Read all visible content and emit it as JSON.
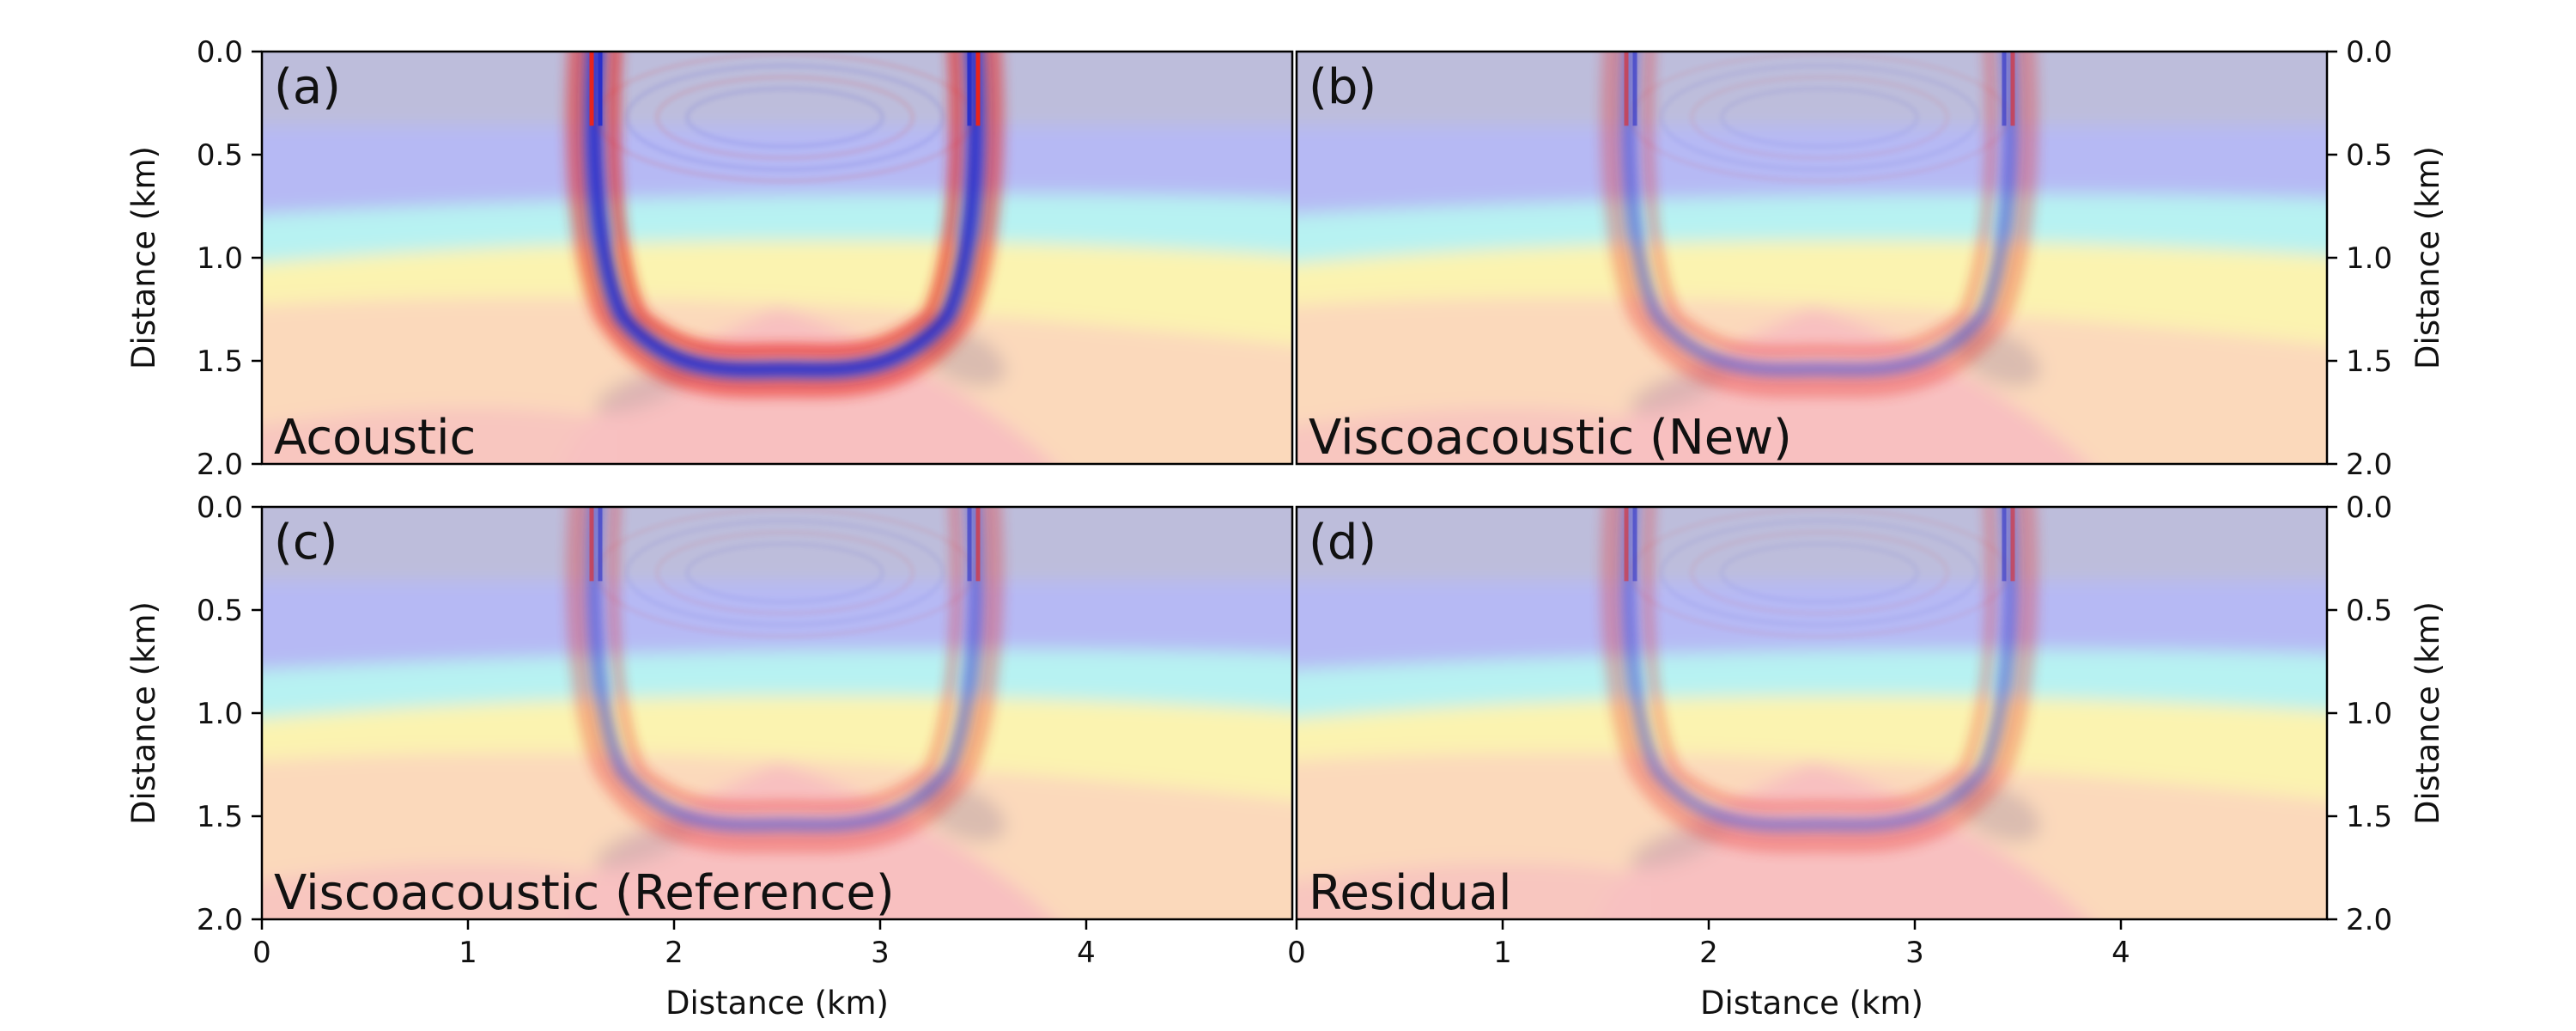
{
  "figure": {
    "colors": {
      "wave_positive": "#e8241c",
      "wave_negative": "#2a2fc8",
      "model_shallow": "#bdbddb",
      "model_mid": "#b6b9f4",
      "model_cyan": "#b7f2f2",
      "model_yellow": "#fbf3b0",
      "model_deep": "#fbd9bb",
      "model_salt": "#f8c0c0",
      "model_shadow": "#c4a8a8"
    }
  },
  "chart_data": [
    {
      "type": "heatmap",
      "panel_label": "(a)",
      "annotation": "Acoustic",
      "xlabel": "",
      "ylabel": "Distance (km)",
      "xlim": [
        0,
        5
      ],
      "ylim": [
        2.0,
        0.0
      ],
      "x_ticks": [
        "0",
        "1",
        "2",
        "3",
        "4"
      ],
      "y_ticks": [
        "0.0",
        "0.5",
        "1.0",
        "1.5",
        "2.0"
      ],
      "wavefront_amplitude": 1.0
    },
    {
      "type": "heatmap",
      "panel_label": "(b)",
      "annotation": "Viscoacoustic (New)",
      "xlabel": "",
      "ylabel": "Distance (km)",
      "xlim": [
        0,
        5
      ],
      "ylim": [
        2.0,
        0.0
      ],
      "x_ticks": [
        "0",
        "1",
        "2",
        "3",
        "4"
      ],
      "y_ticks": [
        "0.0",
        "0.5",
        "1.0",
        "1.5",
        "2.0"
      ],
      "wavefront_amplitude": 0.45
    },
    {
      "type": "heatmap",
      "panel_label": "(c)",
      "annotation": "Viscoacoustic (Reference)",
      "xlabel": "Distance (km)",
      "ylabel": "Distance (km)",
      "xlim": [
        0,
        5
      ],
      "ylim": [
        2.0,
        0.0
      ],
      "x_ticks": [
        "0",
        "1",
        "2",
        "3",
        "4"
      ],
      "y_ticks": [
        "0.0",
        "0.5",
        "1.0",
        "1.5",
        "2.0"
      ],
      "wavefront_amplitude": 0.45
    },
    {
      "type": "heatmap",
      "panel_label": "(d)",
      "annotation": "Residual",
      "xlabel": "Distance (km)",
      "ylabel": "Distance (km)",
      "xlim": [
        0,
        5
      ],
      "ylim": [
        2.0,
        0.0
      ],
      "x_ticks": [
        "0",
        "1",
        "2",
        "3",
        "4"
      ],
      "y_ticks": [
        "0.0",
        "0.5",
        "1.0",
        "1.5",
        "2.0"
      ],
      "wavefront_amplitude": 0.4
    }
  ]
}
